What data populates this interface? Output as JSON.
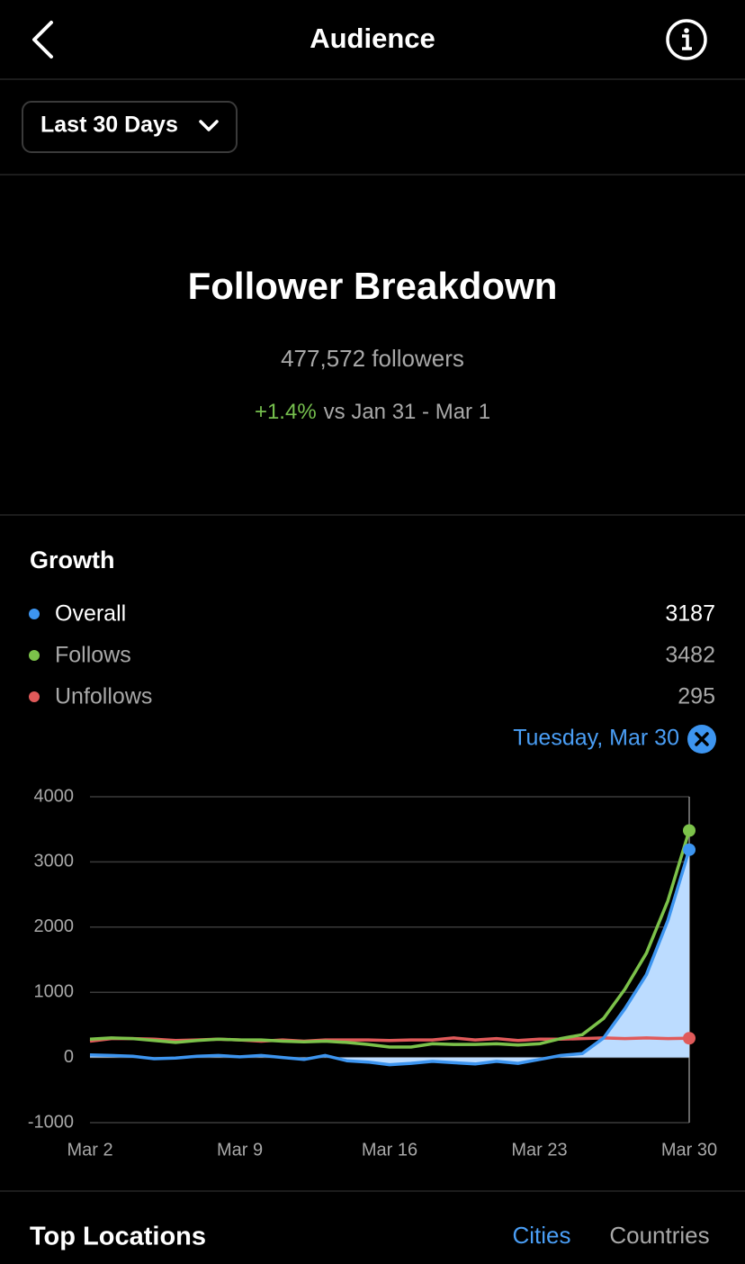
{
  "header": {
    "title": "Audience"
  },
  "filter": {
    "label": "Last 30 Days"
  },
  "summary": {
    "title": "Follower Breakdown",
    "followers": "477,572 followers",
    "change": "+1.4%",
    "comparison": "vs Jan 31 - Mar 1"
  },
  "growth": {
    "title": "Growth",
    "selected_date": "Tuesday, Mar 30"
  },
  "chart_data": {
    "type": "line",
    "categories": [
      "Mar 2",
      null,
      null,
      null,
      null,
      null,
      null,
      "Mar 9",
      null,
      null,
      null,
      null,
      null,
      null,
      "Mar 16",
      null,
      null,
      null,
      null,
      null,
      null,
      "Mar 23",
      null,
      null,
      null,
      null,
      null,
      null,
      "Mar 30"
    ],
    "series": [
      {
        "name": "Overall",
        "color": "#3d95f0",
        "fill": "#bcdcff",
        "values": [
          40,
          30,
          20,
          -20,
          -10,
          20,
          30,
          10,
          30,
          0,
          -30,
          30,
          -50,
          -70,
          -110,
          -90,
          -60,
          -80,
          -100,
          -60,
          -90,
          -30,
          30,
          60,
          300,
          750,
          1270,
          2100,
          3187
        ]
      },
      {
        "name": "Follows",
        "color": "#7cc24a",
        "values": [
          280,
          300,
          290,
          260,
          230,
          260,
          280,
          270,
          270,
          250,
          240,
          250,
          230,
          200,
          160,
          160,
          210,
          200,
          200,
          210,
          190,
          210,
          290,
          350,
          600,
          1050,
          1600,
          2400,
          3482
        ]
      },
      {
        "name": "Unfollows",
        "color": "#e05a5a",
        "values": [
          250,
          290,
          290,
          280,
          260,
          270,
          280,
          270,
          250,
          270,
          250,
          270,
          270,
          270,
          260,
          270,
          270,
          300,
          270,
          290,
          260,
          280,
          280,
          290,
          300,
          290,
          300,
          290,
          295
        ]
      }
    ],
    "ylim": [
      -1000,
      4000
    ],
    "yticks": [
      -1000,
      0,
      1000,
      2000,
      3000,
      4000
    ],
    "grid": true
  },
  "locations": {
    "title": "Top Locations",
    "tabs": [
      "Cities",
      "Countries"
    ]
  }
}
